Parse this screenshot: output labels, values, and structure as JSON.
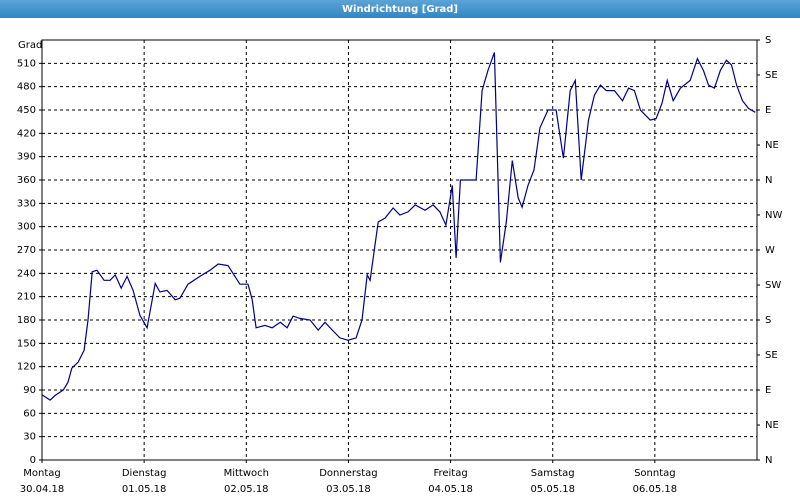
{
  "chart_data": {
    "type": "line",
    "title": "Windrichtung [Grad]",
    "ylabel": "Grad",
    "color": "#00008b",
    "grid": true,
    "xlim": [
      0,
      168
    ],
    "xticks": [
      {
        "value": 0,
        "label": "Montag"
      },
      {
        "value": 24,
        "label": "Dienstag"
      },
      {
        "value": 48,
        "label": "Mittwoch"
      },
      {
        "value": 72,
        "label": "Donnerstag"
      },
      {
        "value": 96,
        "label": "Freitag"
      },
      {
        "value": 120,
        "label": "Samstag"
      },
      {
        "value": 144,
        "label": "Sonntag"
      }
    ],
    "xtick_dates": [
      "30.04.18",
      "01.05.18",
      "02.05.18",
      "03.05.18",
      "04.05.18",
      "05.05.18",
      "06.05.18"
    ],
    "ylim": [
      0,
      540
    ],
    "yticks": [
      0,
      30,
      60,
      90,
      120,
      150,
      180,
      210,
      240,
      270,
      300,
      330,
      360,
      390,
      420,
      450,
      480,
      510
    ],
    "y2lim": [
      0,
      540
    ],
    "y2ticks": [
      {
        "value": 540,
        "label": "S"
      },
      {
        "value": 495,
        "label": "SE"
      },
      {
        "value": 450,
        "label": "E"
      },
      {
        "value": 405,
        "label": "NE"
      },
      {
        "value": 360,
        "label": "N"
      },
      {
        "value": 315,
        "label": "NW"
      },
      {
        "value": 270,
        "label": "W"
      },
      {
        "value": 225,
        "label": "SW"
      },
      {
        "value": 180,
        "label": "S"
      },
      {
        "value": 135,
        "label": "SE"
      },
      {
        "value": 90,
        "label": "E"
      },
      {
        "value": 45,
        "label": "NE"
      },
      {
        "value": 0,
        "label": "N"
      }
    ],
    "x": [
      0,
      1.9,
      3.1,
      5,
      6.1,
      7,
      8.5,
      9.9,
      10.8,
      11.8,
      12.9,
      14.6,
      16,
      17.2,
      18.6,
      20,
      21.4,
      23,
      24.7,
      26.6,
      27.7,
      29.4,
      31.3,
      32.4,
      34.3,
      37.1,
      39.5,
      41.4,
      43.7,
      46.5,
      48.4,
      49.4,
      50.3,
      52.4,
      54.1,
      56,
      57.6,
      59,
      60.6,
      63,
      64.9,
      66.5,
      68.2,
      70,
      71.9,
      73.8,
      75.2,
      76.4,
      77.1,
      79,
      80.6,
      82.5,
      84.1,
      86,
      87.7,
      90,
      91.9,
      93.5,
      94.9,
      96.4,
      97.3,
      98.3,
      102,
      103.4,
      104.8,
      106.3,
      107.7,
      109.1,
      110.5,
      111.9,
      112.8,
      114.2,
      115.6,
      117,
      118.9,
      120.8,
      122.5,
      124.1,
      125.3,
      126.7,
      128.4,
      129.8,
      131.2,
      132.6,
      134.5,
      136.4,
      137.8,
      139.2,
      140.6,
      142.9,
      144.3,
      145.7,
      146.9,
      148.3,
      150,
      152.3,
      154,
      155.4,
      156.6,
      158,
      159.4,
      160.8,
      162,
      163.2,
      164.6,
      166,
      167.6
    ],
    "values": [
      84,
      77,
      83,
      90,
      100,
      118,
      126,
      141,
      180,
      242,
      244,
      231,
      231,
      238,
      221,
      236,
      218,
      186,
      170,
      227,
      216,
      218,
      206,
      208,
      226,
      236,
      244,
      252,
      250,
      226,
      226,
      206,
      170,
      173,
      170,
      177,
      170,
      185,
      182,
      180,
      167,
      177,
      167,
      157,
      154,
      157,
      180,
      238,
      231,
      306,
      311,
      324,
      315,
      319,
      328,
      321,
      328,
      319,
      302,
      353,
      260,
      360,
      360,
      475,
      501,
      524,
      254,
      306,
      385,
      337,
      325,
      353,
      373,
      427,
      450,
      450,
      388,
      475,
      488,
      360,
      437,
      469,
      482,
      475,
      475,
      462,
      478,
      475,
      450,
      437,
      439,
      459,
      488,
      462,
      478,
      488,
      516,
      501,
      482,
      478,
      501,
      514,
      508,
      482,
      462,
      452,
      447
    ]
  }
}
